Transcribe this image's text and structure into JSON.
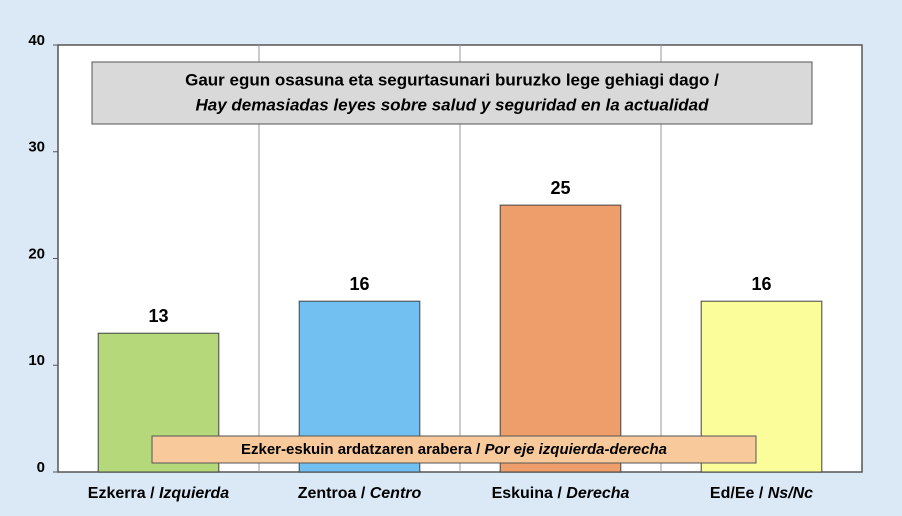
{
  "chart_data": {
    "type": "bar",
    "title": "Gaur egun osasuna eta segurtasunari buruzko lege gehiagi dago /",
    "subtitle": "Hay demasiadas leyes sobre salud y seguridad en la actualidad",
    "annotation": "Ezker-eskuin ardatzaren arabera / Por eje izquierda-derecha",
    "categories": [
      "Ezkerra / Izquierda",
      "Zentroa / Centro",
      "Eskuina / Derecha",
      "Ed/Ee / Ns/Nc"
    ],
    "values": [
      13,
      16,
      25,
      16
    ],
    "colors": [
      "#b5d97a",
      "#72c0f2",
      "#ee9e6a",
      "#fbfc9a"
    ],
    "ylim": [
      0,
      40
    ],
    "yticks": [
      0,
      10,
      20,
      30,
      40
    ],
    "grid": "vertical"
  }
}
